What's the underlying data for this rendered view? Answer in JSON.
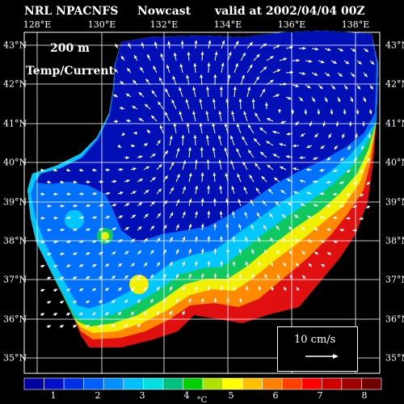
{
  "header": {
    "source": "NRL NPACNFS",
    "product": "Nowcast",
    "valid": "valid at 2002/04/04 00Z"
  },
  "overlay": {
    "depth": "200 m",
    "variable": "Temp/Current"
  },
  "longitude_labels": [
    "128°E",
    "130°E",
    "132°E",
    "134°E",
    "136°E",
    "138°E"
  ],
  "latitude_labels": [
    "43°N",
    "42°N",
    "41°N",
    "40°N",
    "39°N",
    "38°N",
    "37°N",
    "36°N",
    "35°N"
  ],
  "colorbar": {
    "labels": [
      "1",
      "2",
      "3",
      "4",
      "5",
      "6",
      "7",
      "8"
    ],
    "unit": "°C",
    "colors": [
      "#0000a0",
      "#0010c8",
      "#0030e6",
      "#0060ff",
      "#0090ff",
      "#00c0ff",
      "#00e0e0",
      "#00c080",
      "#00d000",
      "#b0e000",
      "#ffff00",
      "#ffc000",
      "#ff8000",
      "#ff4000",
      "#ff0000",
      "#d00000",
      "#a00000",
      "#700000"
    ]
  },
  "legend": {
    "scale_label": "10 cm/s"
  },
  "colors": {
    "land": "#000000",
    "grid": "#ffffff",
    "arrow": "#ffffff"
  }
}
